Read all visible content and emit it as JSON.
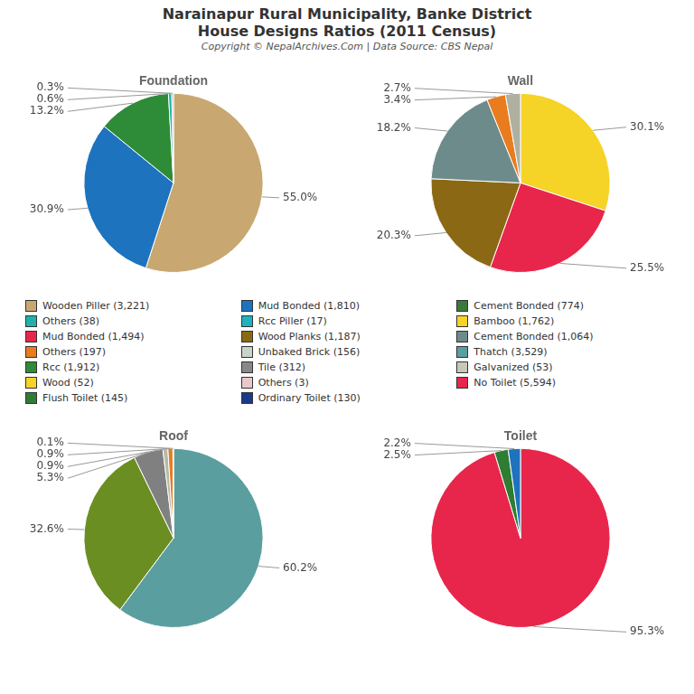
{
  "title": "Narainapur Rural Municipality, Banke District",
  "subtitle": "House Designs Ratios (2011 Census)",
  "annotations": [
    "Copyright © NepalArchives.Com | Data Source: CBS Nepal"
  ],
  "legend_items": [
    {
      "name": "Wooden Piller (3,221)",
      "color": "#c8a870"
    },
    {
      "name": "Others (38)",
      "color": "#20b2aa"
    },
    {
      "name": "Mud Bonded (1,494)",
      "color": "#e8264b"
    },
    {
      "name": "Others (197)",
      "color": "#e87c1e"
    },
    {
      "name": "Rcc (1,912)",
      "color": "#2e8b37"
    },
    {
      "name": "Wood (52)",
      "color": "#f5d327"
    },
    {
      "name": "Flush Toilet (145)",
      "color": "#2e7d32"
    },
    {
      "name": "Mud Bonded (1,810)",
      "color": "#1e73be"
    },
    {
      "name": "Rcc Piller (17)",
      "color": "#20b2bc"
    },
    {
      "name": "Wood Planks (1,187)",
      "color": "#8b6914"
    },
    {
      "name": "Unbaked Brick (156)",
      "color": "#c8d4c8"
    },
    {
      "name": "Tile (312)",
      "color": "#888888"
    },
    {
      "name": "Others (3)",
      "color": "#e8c8c8"
    },
    {
      "name": "Ordinary Toilet (130)",
      "color": "#1a3a8a"
    },
    {
      "name": "Cement Bonded (774)",
      "color": "#3a7a3a"
    },
    {
      "name": "Bamboo (1,762)",
      "color": "#f5d327"
    },
    {
      "name": "Cement Bonded (1,064)",
      "color": "#6e8b8b"
    },
    {
      "name": "Thatch (3,529)",
      "color": "#5b9ea0"
    },
    {
      "name": "Galvanized (53)",
      "color": "#c8c8b8"
    },
    {
      "name": "No Toilet (5,594)",
      "color": "#e8264b"
    }
  ],
  "chart_data": [
    {
      "type": "pie",
      "title": "Foundation",
      "values": [
        55.0,
        30.9,
        13.2,
        0.6,
        0.3
      ],
      "value_labels": [
        "55.0%",
        "30.9%",
        "13.2%",
        "0.6%",
        "0.3%"
      ],
      "colors": [
        "#c8a870",
        "#1e73be",
        "#2e8b37",
        "#20b2aa",
        "#aaaaaa"
      ],
      "data_labels": true
    },
    {
      "type": "pie",
      "title": "Wall",
      "values": [
        30.1,
        25.5,
        20.3,
        18.2,
        3.4,
        2.7
      ],
      "value_labels": [
        "30.1%",
        "25.5%",
        "20.3%",
        "18.2%",
        "3.4%",
        "2.7%"
      ],
      "colors": [
        "#f5d327",
        "#e8264b",
        "#8b6914",
        "#6e8b8b",
        "#e87c1e",
        "#b0b0a0"
      ],
      "data_labels": true
    },
    {
      "type": "pie",
      "title": "Roof",
      "values": [
        60.2,
        32.6,
        5.3,
        0.9,
        0.9,
        0.1
      ],
      "value_labels": [
        "60.2%",
        "32.6%",
        "5.3%",
        "0.9%",
        "0.9%",
        "0.1%"
      ],
      "colors": [
        "#5b9ea0",
        "#6b8e23",
        "#808080",
        "#b8b8a8",
        "#e87c1e",
        "#f5d327"
      ],
      "data_labels": true
    },
    {
      "type": "pie",
      "title": "Toilet",
      "values": [
        95.3,
        2.5,
        2.2
      ],
      "value_labels": [
        "95.3%",
        "2.5%",
        "2.2%"
      ],
      "colors": [
        "#e8264b",
        "#2e7d32",
        "#1e73be"
      ],
      "data_labels": true
    }
  ]
}
